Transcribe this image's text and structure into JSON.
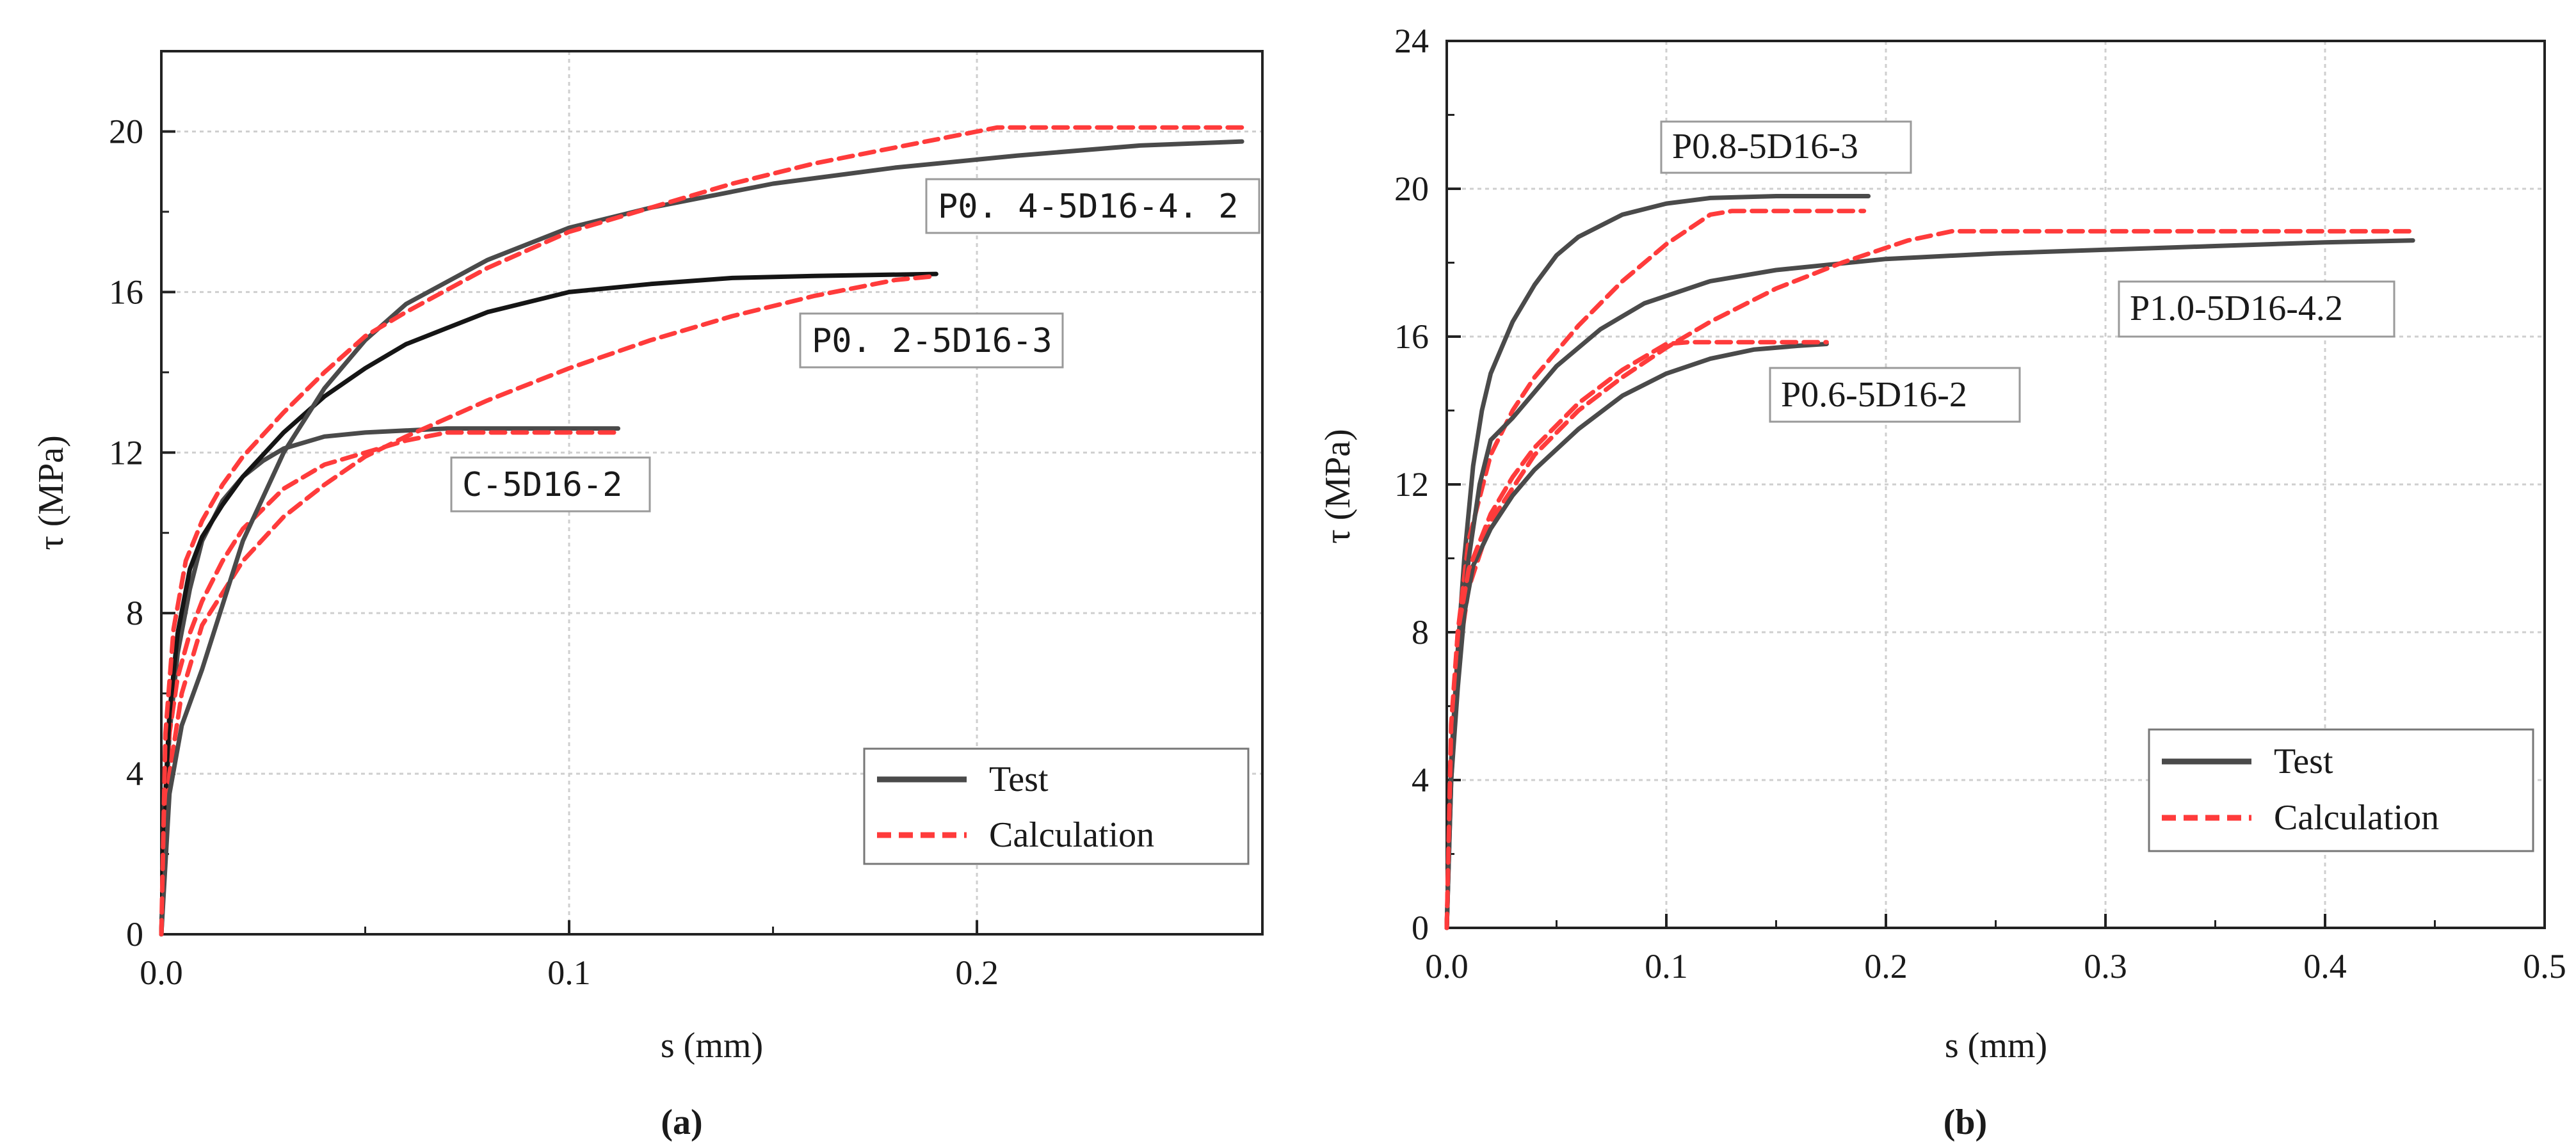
{
  "colors": {
    "test": "#4a4a4a",
    "test_dark": "#151515",
    "calculation": "#ff3b3b",
    "grid": "#cfcfcf",
    "axis": "#222222"
  },
  "chart_data": [
    {
      "type": "line",
      "panel_label": "(a)",
      "xlabel": "s (mm)",
      "ylabel": "τ (MPa)",
      "xlim": [
        0,
        0.27
      ],
      "ylim": [
        0,
        22
      ],
      "x_ticks": [
        0.0,
        0.1,
        0.2
      ],
      "x_tick_labels": [
        "0.0",
        "0.1",
        "0.2"
      ],
      "y_ticks": [
        0,
        4,
        8,
        12,
        16,
        20
      ],
      "y_tick_labels": [
        "0",
        "4",
        "8",
        "12",
        "16",
        "20"
      ],
      "grid": true,
      "legend": {
        "position": "bottom-right",
        "entries": [
          "Test",
          "Calculation"
        ]
      },
      "series": [
        {
          "name": "C-5D16-2 Test",
          "style": "test",
          "x": [
            0,
            0.001,
            0.002,
            0.004,
            0.007,
            0.01,
            0.015,
            0.02,
            0.025,
            0.03,
            0.04,
            0.05,
            0.07,
            0.09,
            0.112
          ],
          "y": [
            0,
            3.0,
            5.0,
            7.0,
            8.6,
            9.8,
            10.8,
            11.4,
            11.8,
            12.1,
            12.4,
            12.5,
            12.6,
            12.6,
            12.6
          ]
        },
        {
          "name": "C-5D16-2 Calculation",
          "style": "calc",
          "x": [
            0,
            0.001,
            0.002,
            0.004,
            0.007,
            0.01,
            0.015,
            0.02,
            0.03,
            0.04,
            0.05,
            0.06,
            0.07,
            0.09,
            0.112
          ],
          "y": [
            0,
            3.2,
            5.0,
            6.4,
            7.5,
            8.3,
            9.3,
            10.1,
            11.1,
            11.7,
            12.0,
            12.3,
            12.5,
            12.5,
            12.5
          ]
        },
        {
          "name": "P0.2-5D16-3 Test",
          "style": "test_dark",
          "x": [
            0,
            0.001,
            0.002,
            0.004,
            0.007,
            0.01,
            0.015,
            0.02,
            0.03,
            0.04,
            0.05,
            0.06,
            0.07,
            0.08,
            0.1,
            0.12,
            0.14,
            0.16,
            0.19
          ],
          "y": [
            0,
            3.5,
            5.5,
            7.5,
            9.1,
            9.9,
            10.7,
            11.4,
            12.5,
            13.4,
            14.1,
            14.7,
            15.1,
            15.5,
            16.0,
            16.2,
            16.35,
            16.4,
            16.45
          ]
        },
        {
          "name": "P0.2-5D16-3 Calculation",
          "style": "calc",
          "x": [
            0,
            0.002,
            0.005,
            0.01,
            0.02,
            0.03,
            0.04,
            0.05,
            0.06,
            0.08,
            0.1,
            0.12,
            0.14,
            0.16,
            0.18,
            0.19
          ],
          "y": [
            0,
            4.0,
            6.0,
            7.7,
            9.3,
            10.4,
            11.2,
            11.9,
            12.4,
            13.3,
            14.1,
            14.8,
            15.4,
            15.9,
            16.3,
            16.4
          ]
        },
        {
          "name": "P0.4-5D16-4.2 Test",
          "style": "test",
          "x": [
            0,
            0.002,
            0.005,
            0.01,
            0.015,
            0.02,
            0.03,
            0.04,
            0.05,
            0.06,
            0.08,
            0.1,
            0.12,
            0.15,
            0.18,
            0.21,
            0.24,
            0.265
          ],
          "y": [
            0,
            3.5,
            5.2,
            6.6,
            8.2,
            9.8,
            12.0,
            13.6,
            14.8,
            15.7,
            16.8,
            17.6,
            18.1,
            18.7,
            19.1,
            19.4,
            19.65,
            19.75
          ]
        },
        {
          "name": "P0.4-5D16-4.2 Calculation",
          "style": "calc",
          "x": [
            0,
            0.001,
            0.003,
            0.006,
            0.01,
            0.015,
            0.02,
            0.03,
            0.04,
            0.05,
            0.06,
            0.08,
            0.1,
            0.12,
            0.14,
            0.16,
            0.18,
            0.2,
            0.205,
            0.265
          ],
          "y": [
            0,
            5.0,
            7.6,
            9.3,
            10.3,
            11.2,
            11.9,
            13.0,
            14.0,
            14.9,
            15.5,
            16.6,
            17.5,
            18.1,
            18.7,
            19.2,
            19.6,
            20.0,
            20.1,
            20.1
          ]
        }
      ],
      "annotations": [
        "P0. 4-5D16-4. 2",
        "P0. 2-5D16-3",
        "C-5D16-2"
      ]
    },
    {
      "type": "line",
      "panel_label": "(b)",
      "xlabel": "s (mm)",
      "ylabel": "τ (MPa)",
      "xlim": [
        0,
        0.5
      ],
      "ylim": [
        0,
        24
      ],
      "x_ticks": [
        0.0,
        0.1,
        0.2,
        0.3,
        0.4,
        0.5
      ],
      "x_tick_labels": [
        "0.0",
        "0.1",
        "0.2",
        "0.3",
        "0.4",
        "0.5"
      ],
      "y_ticks": [
        0,
        4,
        8,
        12,
        16,
        20,
        24
      ],
      "y_tick_labels": [
        "0",
        "4",
        "8",
        "12",
        "16",
        "20",
        "24"
      ],
      "grid": true,
      "legend": {
        "position": "bottom-right",
        "entries": [
          "Test",
          "Calculation"
        ]
      },
      "series": [
        {
          "name": "P0.8-5D16-3 Test",
          "style": "test",
          "x": [
            0,
            0.002,
            0.005,
            0.008,
            0.012,
            0.016,
            0.02,
            0.03,
            0.04,
            0.05,
            0.06,
            0.08,
            0.1,
            0.12,
            0.15,
            0.192
          ],
          "y": [
            0,
            4.5,
            7.5,
            10.0,
            12.5,
            14.0,
            15.0,
            16.4,
            17.4,
            18.2,
            18.7,
            19.3,
            19.6,
            19.75,
            19.8,
            19.8
          ]
        },
        {
          "name": "P0.8-5D16-3 Calculation",
          "style": "calc",
          "x": [
            0,
            0.002,
            0.005,
            0.01,
            0.02,
            0.03,
            0.04,
            0.05,
            0.06,
            0.08,
            0.1,
            0.12,
            0.13,
            0.19
          ],
          "y": [
            0,
            5.0,
            8.0,
            10.5,
            12.8,
            14.0,
            14.9,
            15.6,
            16.3,
            17.5,
            18.5,
            19.3,
            19.4,
            19.4
          ]
        },
        {
          "name": "P1.0-5D16-4.2 Test",
          "style": "test",
          "x": [
            0,
            0.002,
            0.005,
            0.01,
            0.015,
            0.02,
            0.03,
            0.05,
            0.07,
            0.09,
            0.12,
            0.15,
            0.2,
            0.25,
            0.3,
            0.35,
            0.4,
            0.44
          ],
          "y": [
            0,
            4.0,
            7.0,
            10.0,
            12.0,
            13.2,
            13.8,
            15.2,
            16.2,
            16.9,
            17.5,
            17.8,
            18.1,
            18.25,
            18.35,
            18.45,
            18.55,
            18.6
          ]
        },
        {
          "name": "P1.0-5D16-4.2 Calculation",
          "style": "calc",
          "x": [
            0,
            0.002,
            0.005,
            0.01,
            0.02,
            0.04,
            0.06,
            0.08,
            0.1,
            0.12,
            0.15,
            0.18,
            0.21,
            0.23,
            0.44
          ],
          "y": [
            0,
            4.5,
            7.2,
            9.2,
            11.0,
            12.8,
            14.0,
            14.9,
            15.7,
            16.4,
            17.3,
            18.0,
            18.6,
            18.85,
            18.85
          ]
        },
        {
          "name": "P0.6-5D16-2 Test",
          "style": "test",
          "x": [
            0,
            0.002,
            0.005,
            0.008,
            0.012,
            0.02,
            0.03,
            0.04,
            0.06,
            0.08,
            0.1,
            0.12,
            0.14,
            0.16,
            0.173
          ],
          "y": [
            0,
            4.0,
            6.5,
            8.5,
            9.8,
            10.8,
            11.7,
            12.4,
            13.5,
            14.4,
            15.0,
            15.4,
            15.65,
            15.75,
            15.8
          ]
        },
        {
          "name": "P0.6-5D16-2 Calculation",
          "style": "calc",
          "x": [
            0,
            0.002,
            0.005,
            0.01,
            0.02,
            0.03,
            0.04,
            0.06,
            0.08,
            0.1,
            0.11,
            0.173
          ],
          "y": [
            0,
            5.5,
            8.0,
            9.7,
            11.2,
            12.2,
            13.0,
            14.2,
            15.1,
            15.8,
            15.85,
            15.85
          ]
        }
      ],
      "annotations": [
        "P0.8-5D16-3",
        "P1.0-5D16-4.2",
        "P0.6-5D16-2"
      ]
    }
  ]
}
